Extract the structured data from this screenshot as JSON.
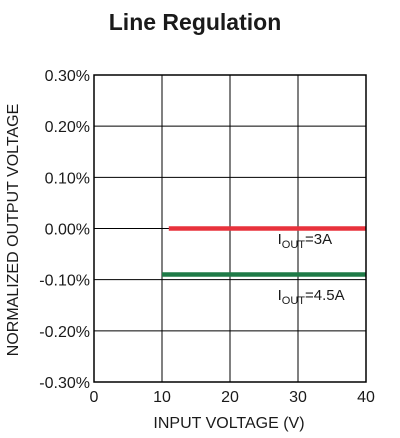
{
  "chart_data": {
    "type": "line",
    "title": "Line Regulation",
    "xlabel": "INPUT VOLTAGE (V)",
    "ylabel": "NORMALIZED OUTPUT VOLTAGE",
    "xlim": [
      0,
      40
    ],
    "ylim": [
      -0.3,
      0.3
    ],
    "x_ticks": [
      "0",
      "10",
      "20",
      "30",
      "40"
    ],
    "y_ticks": [
      "0.30%",
      "0.20%",
      "0.10%",
      "0.00%",
      "-0.10%",
      "-0.20%",
      "-0.30%"
    ],
    "grid": true,
    "series": [
      {
        "name": "IOUT=3A",
        "color": "#e8323c",
        "x": [
          11,
          40
        ],
        "y": [
          0.0,
          0.0
        ]
      },
      {
        "name": "IOUT=4.5A",
        "color": "#1f7a47",
        "x": [
          10,
          40
        ],
        "y": [
          -0.09,
          -0.09
        ]
      }
    ],
    "annotations": [
      {
        "main": "I",
        "sub": "OUT",
        "rest": "=3A",
        "x": 27,
        "y": -0.03
      },
      {
        "main": "I",
        "sub": "OUT",
        "rest": "=4.5A",
        "x": 27,
        "y": -0.14
      }
    ]
  }
}
